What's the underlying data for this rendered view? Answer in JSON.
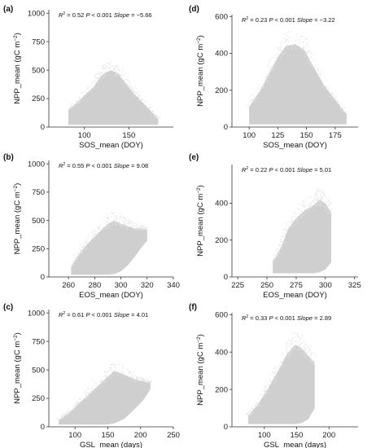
{
  "chart_data": [
    {
      "panel": "(a)",
      "type": "scatter",
      "xlabel": "SOS_mean (DOY)",
      "ylabel": "NPP_mean (gC m",
      "ylabel_sup": "−2",
      "ylabel_end": ")",
      "stats": {
        "r2": "= 0.52",
        "p": "< 0.001",
        "slope": "= −5.66"
      },
      "xlim": [
        60,
        200
      ],
      "ylim": [
        0,
        1030
      ],
      "xticks": [
        100,
        150
      ],
      "yticks": [
        0,
        250,
        500,
        750,
        1000
      ],
      "xtick_labels": [
        "100",
        "150"
      ],
      "ytick_labels": [
        "0",
        "250",
        "500",
        "750",
        "1000"
      ],
      "density_envelope": {
        "x": [
          82,
          95,
          110,
          118,
          122,
          130,
          138,
          145,
          155,
          165,
          175,
          183
        ],
        "ymin": [
          20,
          20,
          20,
          20,
          20,
          20,
          20,
          20,
          20,
          20,
          20,
          20
        ],
        "ymax": [
          150,
          240,
          350,
          440,
          470,
          500,
          470,
          400,
          300,
          220,
          140,
          70
        ]
      }
    },
    {
      "panel": "(b)",
      "type": "scatter",
      "xlabel": "EOS_mean (DOY)",
      "ylabel": "NPP_mean (gC m",
      "ylabel_sup": "−2",
      "ylabel_end": ")",
      "stats": {
        "r2": "= 0.55",
        "p": "< 0.001",
        "slope": "= 9.08"
      },
      "xlim": [
        245,
        340
      ],
      "ylim": [
        0,
        1030
      ],
      "xticks": [
        260,
        280,
        300,
        320,
        340
      ],
      "yticks": [
        0,
        250,
        500,
        750,
        1000
      ],
      "xtick_labels": [
        "260",
        "280",
        "300",
        "320",
        "340"
      ],
      "ytick_labels": [
        "0",
        "250",
        "500",
        "750",
        "1000"
      ],
      "density_envelope": {
        "x": [
          262,
          268,
          275,
          282,
          290,
          295,
          300,
          305,
          310,
          315,
          320
        ],
        "ymin": [
          20,
          20,
          20,
          20,
          20,
          25,
          50,
          100,
          170,
          250,
          320
        ],
        "ymax": [
          90,
          200,
          300,
          380,
          470,
          500,
          470,
          450,
          430,
          430,
          420
        ]
      }
    },
    {
      "panel": "(c)",
      "type": "scatter",
      "xlabel": "GSL_mean (days)",
      "ylabel": "NPP_mean (gC m",
      "ylabel_sup": "−2",
      "ylabel_end": ")",
      "stats": {
        "r2": "= 0.61",
        "p": "< 0.001",
        "slope": "= 4.01"
      },
      "xlim": [
        60,
        250
      ],
      "ylim": [
        0,
        1030
      ],
      "xticks": [
        100,
        150,
        200,
        250
      ],
      "yticks": [
        0,
        250,
        500,
        750,
        1000
      ],
      "xtick_labels": [
        "100",
        "150",
        "200",
        "250"
      ],
      "ytick_labels": [
        "0",
        "250",
        "500",
        "750",
        "1000"
      ],
      "density_envelope": {
        "x": [
          75,
          90,
          105,
          120,
          135,
          148,
          160,
          175,
          190,
          205,
          215
        ],
        "ymin": [
          20,
          20,
          20,
          20,
          20,
          20,
          30,
          70,
          150,
          240,
          330
        ],
        "ymax": [
          60,
          120,
          200,
          280,
          360,
          430,
          490,
          460,
          420,
          400,
          390
        ]
      }
    },
    {
      "panel": "(d)",
      "type": "scatter",
      "xlabel": "SOS_mean (DOY)",
      "ylabel": "NPP_mean (gC m",
      "ylabel_sup": "−2",
      "ylabel_end": ")",
      "stats": {
        "r2": "= 0.23",
        "p": "< 0.001",
        "slope": "= −3.22"
      },
      "xlim": [
        85,
        195
      ],
      "ylim": [
        0,
        610
      ],
      "xticks": [
        100,
        125,
        150,
        175
      ],
      "yticks": [
        0,
        200,
        400,
        600
      ],
      "xtick_labels": [
        "100",
        "125",
        "150",
        "175"
      ],
      "ytick_labels": [
        "0",
        "200",
        "400",
        "600"
      ],
      "density_envelope": {
        "x": [
          100,
          110,
          118,
          125,
          132,
          140,
          148,
          155,
          165,
          175,
          185
        ],
        "ymin": [
          15,
          15,
          15,
          15,
          15,
          15,
          15,
          15,
          15,
          15,
          15
        ],
        "ymax": [
          110,
          200,
          300,
          380,
          440,
          450,
          420,
          340,
          230,
          150,
          70
        ]
      }
    },
    {
      "panel": "(e)",
      "type": "scatter",
      "xlabel": "EOS_mean (DOY)",
      "ylabel": "NPP_mean (gC m",
      "ylabel_sup": "−2",
      "ylabel_end": ")",
      "stats": {
        "r2": "= 0.22",
        "p": "< 0.001",
        "slope": "= 5.01"
      },
      "xlim": [
        220,
        328
      ],
      "ylim": [
        0,
        610
      ],
      "xticks": [
        225,
        250,
        275,
        300,
        325
      ],
      "yticks": [
        0,
        200,
        400
      ],
      "xtick_labels": [
        "225",
        "250",
        "275",
        "300",
        "325"
      ],
      "ytick_labels": [
        "0",
        "200",
        "400"
      ],
      "density_envelope": {
        "x": [
          255,
          262,
          268,
          275,
          282,
          290,
          295,
          300,
          305
        ],
        "ymin": [
          20,
          20,
          20,
          20,
          20,
          20,
          25,
          40,
          80
        ],
        "ymax": [
          80,
          160,
          260,
          320,
          360,
          390,
          420,
          400,
          350
        ]
      }
    },
    {
      "panel": "(f)",
      "type": "scatter",
      "xlabel": "GSL_mean (days)",
      "ylabel": "NPP_mean (gC m",
      "ylabel_sup": "−2",
      "ylabel_end": ")",
      "stats": {
        "r2": "= 0.33",
        "p": "< 0.001",
        "slope": "= 2.89"
      },
      "xlim": [
        50,
        245
      ],
      "ylim": [
        0,
        610
      ],
      "xticks": [
        100,
        150,
        200
      ],
      "yticks": [
        0,
        200,
        400,
        600
      ],
      "xtick_labels": [
        "100",
        "150",
        "200"
      ],
      "ytick_labels": [
        "0",
        "200",
        "400",
        "600"
      ],
      "density_envelope": {
        "x": [
          75,
          90,
          105,
          120,
          135,
          148,
          158,
          168,
          178
        ],
        "ymin": [
          15,
          15,
          15,
          15,
          15,
          15,
          20,
          40,
          100
        ],
        "ymax": [
          60,
          120,
          200,
          290,
          390,
          440,
          420,
          380,
          340
        ]
      }
    }
  ]
}
